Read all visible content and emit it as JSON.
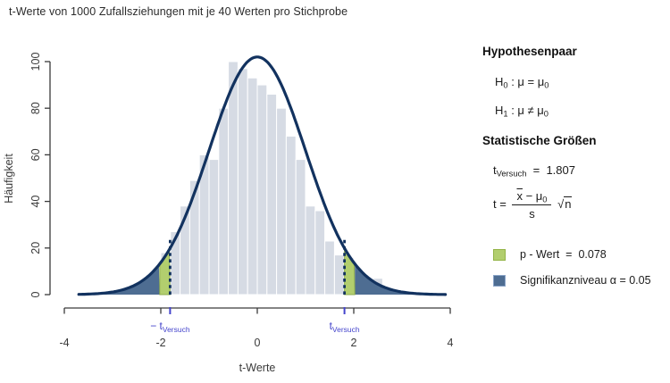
{
  "title": "t-Werte von 1000 Zufallsziehungen mit je 40 Werten pro Stichprobe",
  "chart_data": {
    "type": "bar",
    "subtype": "histogram-with-density-curve",
    "xlabel": "t-Werte",
    "ylabel": "Häufigkeit",
    "xlim": [
      -4,
      4
    ],
    "ylim": [
      0,
      100
    ],
    "x_ticks": [
      -4,
      -2,
      0,
      2,
      4
    ],
    "y_ticks": [
      0,
      20,
      40,
      60,
      80,
      100
    ],
    "grid": "off",
    "bins": {
      "width": 0.2,
      "start": [
        -3.0,
        -2.8,
        -2.6,
        -2.4,
        -2.2,
        -2.0,
        -1.8,
        -1.6,
        -1.4,
        -1.2,
        -1.0,
        -0.8,
        -0.6,
        -0.4,
        -0.2,
        0.0,
        0.2,
        0.4,
        0.6,
        0.8,
        1.0,
        1.2,
        1.4,
        1.6,
        1.8,
        2.0,
        2.2,
        2.4,
        2.6
      ],
      "height": [
        1,
        2,
        3,
        4,
        7,
        18,
        27,
        38,
        49,
        60,
        58,
        80,
        100,
        97,
        93,
        90,
        86,
        80,
        68,
        58,
        38,
        36,
        23,
        17,
        16,
        5,
        4,
        7,
        2
      ]
    },
    "curve": {
      "shape": "normal-density",
      "mean": 0,
      "sd": 1,
      "peak": 102,
      "range": [
        -3.7,
        3.9
      ]
    },
    "t_versuch": 1.807,
    "t_critical": 2.023,
    "marker_left": {
      "minus": "− ",
      "base": "t",
      "sub": "Versuch"
    },
    "marker_right": {
      "minus": "",
      "base": "t",
      "sub": "Versuch"
    }
  },
  "colors": {
    "bar_fill": "#d6dbe4",
    "bar_border": "#ffffff",
    "curve": "#12325f",
    "dashed_line": "#12325f",
    "p_region_fill": "#b2ce6e",
    "p_region_border": "#8fae4e",
    "alpha_region_fill": "#4e6d92",
    "marker_blue": "#4444cc",
    "axis": "#3a3a3a",
    "swatch_p_border": "#93b447",
    "swatch_alpha_border": "#8aa4c8"
  },
  "sidebar": {
    "hypotheses_heading": "Hypothesenpaar",
    "h0": {
      "base": "H",
      "sub": "0",
      "rest": " : μ = μ",
      "rest_sub": "0"
    },
    "h1": {
      "base": "H",
      "sub": "1",
      "rest": " : μ ≠ μ",
      "rest_sub": "0"
    },
    "stats_heading": "Statistische Größen",
    "t_versuch_line": {
      "base": "t",
      "sub": "Versuch",
      "eq": "  =  ",
      "value": "1.807"
    },
    "formula": {
      "lhs": "t",
      "eq": " = ",
      "num_x": "x",
      "num_rest": " − μ",
      "num_sub": "0",
      "den": "s",
      "sqrt_sym": "√",
      "sqrt_arg": "n"
    },
    "legend": {
      "p_wert": {
        "label": "p - Wert",
        "eq": "  =  ",
        "value": "0.078"
      },
      "alpha": {
        "label": "Signifikanzniveau α = ",
        "value": "0.05"
      }
    }
  }
}
